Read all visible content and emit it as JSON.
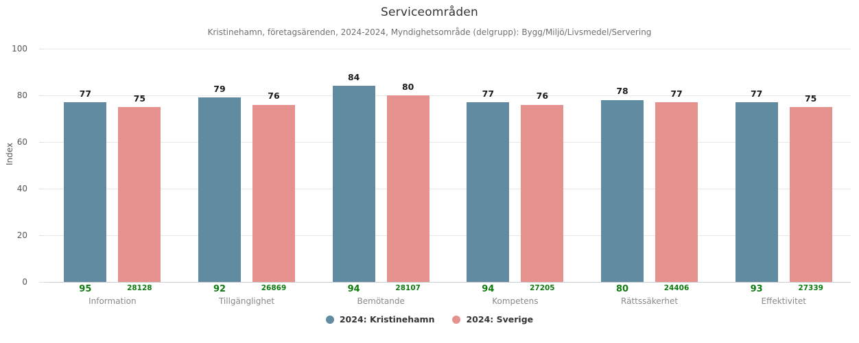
{
  "chart_data": {
    "type": "bar",
    "title": "Serviceområden",
    "subtitle": "Kristinehamn, företagsärenden, 2024-2024, Myndighetsområde (delgrupp): Bygg/Miljö/Livsmedel/Servering",
    "ylabel": "Index",
    "ylim": [
      0,
      100
    ],
    "yticks": [
      0,
      20,
      40,
      60,
      80,
      100
    ],
    "grid": true,
    "legend_position": "bottom",
    "categories": [
      "Information",
      "Tillgänglighet",
      "Bemötande",
      "Kompetens",
      "Rättssäkerhet",
      "Effektivitet"
    ],
    "series": [
      {
        "name": "2024: Kristinehamn",
        "color": "#618ba1",
        "values": [
          77,
          79,
          84,
          77,
          78,
          77
        ],
        "sample_sizes": [
          95,
          92,
          94,
          94,
          80,
          93
        ]
      },
      {
        "name": "2024: Sverige",
        "color": "#e5928e",
        "values": [
          75,
          76,
          80,
          76,
          77,
          75
        ],
        "sample_sizes": [
          28128,
          26869,
          28107,
          27205,
          24406,
          27339
        ]
      }
    ],
    "colors": {
      "sample_size_text": "#0e7c0e",
      "value_label_text": "#1a1a1a",
      "category_text": "#888888",
      "axis_text": "#555555",
      "gridline": "#e8e8e8"
    }
  }
}
